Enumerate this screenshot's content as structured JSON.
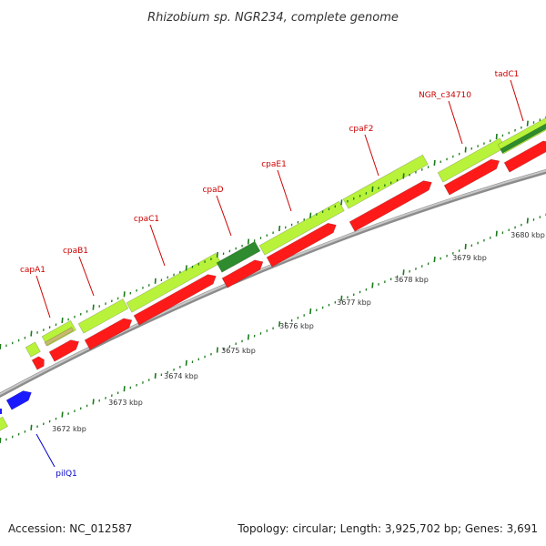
{
  "title": "Rhizobium sp. NGR234, complete genome",
  "footer": {
    "accession": "Accession: NC_012587",
    "summary": "Topology: circular; Length: 3,925,702 bp; Genes: 3,691"
  },
  "colors": {
    "forward_feature": "#b8f23a",
    "forward_feature_dark": "#2e8b2e",
    "forward_feature_tan": "#c8b870",
    "reverse_feature": "#ff1a1a",
    "other_feature": "#1a1aff",
    "backbone": "#9a9a9a",
    "label_red": "#cc0000",
    "label_blue": "#0000cc",
    "tick_green": "#1a7a1a"
  },
  "gene_labels": [
    {
      "text": "capA1",
      "color": "red"
    },
    {
      "text": "cpaB1",
      "color": "red"
    },
    {
      "text": "cpaC1",
      "color": "red"
    },
    {
      "text": "cpaD",
      "color": "red"
    },
    {
      "text": "cpaE1",
      "color": "red"
    },
    {
      "text": "cpaF2",
      "color": "red"
    },
    {
      "text": "NGR_c34710",
      "color": "red"
    },
    {
      "text": "tadC1",
      "color": "red"
    },
    {
      "text": "pilQ1",
      "color": "blue"
    }
  ],
  "scale_labels": [
    "3672 kbp",
    "3673 kbp",
    "3674 kbp",
    "3675 kbp",
    "3676 kbp",
    "3677 kbp",
    "3678 kbp",
    "3679 kbp",
    "3680 kbp"
  ]
}
